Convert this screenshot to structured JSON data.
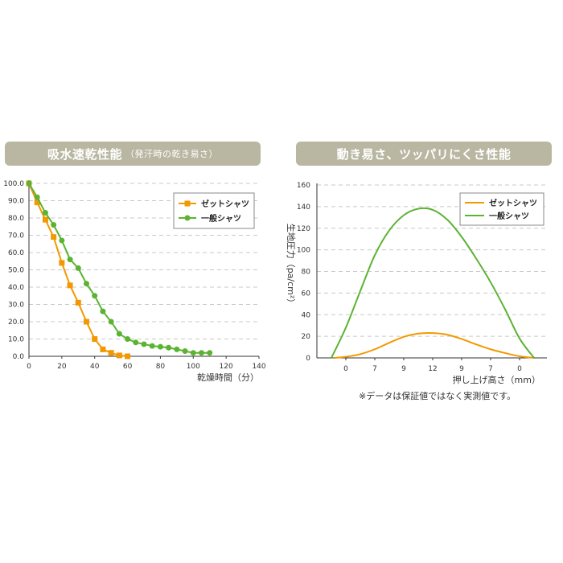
{
  "banners": {
    "left_title": "吸水速乾性能",
    "left_subtitle": "（発汗時の乾き易さ）",
    "right_title": "動き易さ、ツッパリにくさ性能"
  },
  "note": "※データは保証値ではなく実測値です。",
  "colors": {
    "orange": "#f39800",
    "green": "#5bb331",
    "banner": "#b9b7a2",
    "grid": "#c8c8c8"
  },
  "chart_data": [
    {
      "type": "line",
      "xlabel": "乾燥時間（分）",
      "ylabel": "",
      "xlim": [
        0,
        140
      ],
      "ylim": [
        0,
        100
      ],
      "x_ticks": [
        "0",
        "20",
        "40",
        "60",
        "80",
        "100",
        "120",
        "140"
      ],
      "y_ticks": [
        "0.0",
        "10.0",
        "20.0",
        "30.0",
        "40.0",
        "50.0",
        "60.0",
        "70.0",
        "80.0",
        "90.0",
        "100.0"
      ],
      "grid": true,
      "legend": "top-right",
      "series": [
        {
          "name": "ゼットシャツ",
          "marker": "square",
          "x": [
            0,
            5,
            10,
            15,
            20,
            25,
            30,
            35,
            40,
            45,
            50,
            55,
            60
          ],
          "y": [
            100,
            89,
            79,
            69,
            54,
            41,
            31,
            20,
            10,
            4,
            2,
            0.5,
            0
          ]
        },
        {
          "name": "一般シャツ",
          "marker": "circle",
          "x": [
            0,
            5,
            10,
            15,
            20,
            25,
            30,
            35,
            40,
            45,
            50,
            55,
            60,
            65,
            70,
            75,
            80,
            85,
            90,
            95,
            100,
            105,
            110
          ],
          "y": [
            100,
            92,
            83,
            76,
            67,
            56,
            51,
            42,
            35,
            26,
            20,
            13,
            10,
            8,
            7,
            6,
            5.5,
            5,
            4,
            3,
            2,
            2,
            2
          ]
        }
      ]
    },
    {
      "type": "line",
      "xlabel": "押し上げ高さ（mm）",
      "ylabel": "生地圧力（pa/cm²）",
      "ylim": [
        0,
        160
      ],
      "x_ticks": [
        "0",
        "7",
        "9",
        "12",
        "9",
        "7",
        "0"
      ],
      "y_ticks": [
        "0",
        "20",
        "40",
        "60",
        "80",
        "100",
        "120",
        "140",
        "160"
      ],
      "grid": true,
      "legend": "top-right",
      "series": [
        {
          "name": "ゼットシャツ",
          "x_index": [
            -0.4,
            0,
            0.5,
            1,
            1.5,
            2,
            2.5,
            3,
            3.5,
            4,
            4.5,
            5,
            5.5,
            6,
            6.5
          ],
          "y": [
            0,
            1,
            3.5,
            8,
            14,
            19.5,
            22.5,
            23,
            21.5,
            17.5,
            12.5,
            8,
            4.5,
            1.5,
            0
          ]
        },
        {
          "name": "一般シャツ",
          "x_index": [
            -0.5,
            0,
            0.5,
            1,
            1.5,
            2,
            2.5,
            3,
            3.5,
            4,
            4.5,
            5,
            5.5,
            6,
            6.5
          ],
          "y": [
            0,
            28,
            62,
            95,
            118,
            132,
            138,
            137,
            128,
            112,
            92,
            70,
            45,
            18,
            0
          ]
        }
      ]
    }
  ]
}
